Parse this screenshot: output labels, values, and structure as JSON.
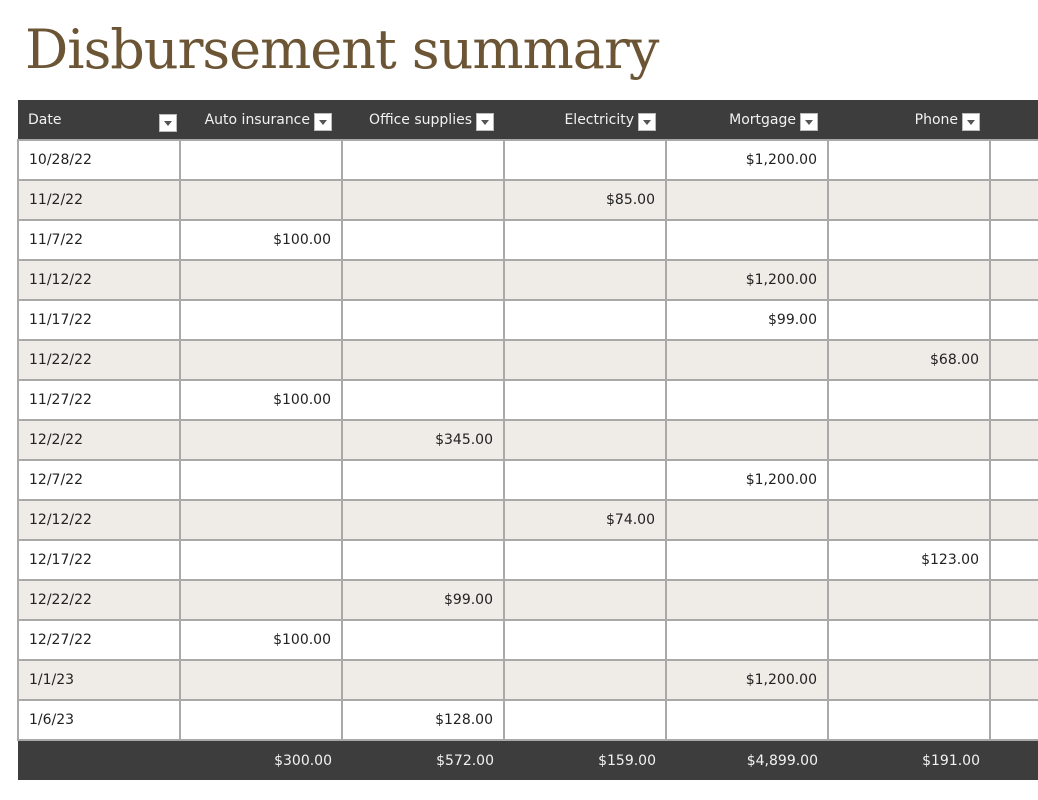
{
  "title": "Disbursement summary",
  "colors": {
    "header_bg": "#3d3d3d",
    "alt_row": "#efece7",
    "title": "#6b5535",
    "grid": "#a9a9a9"
  },
  "table": {
    "columns": [
      {
        "label": "Date",
        "filter_icon": "dropdown-arrow"
      },
      {
        "label": "Auto insurance",
        "filter_icon": "dropdown-arrow"
      },
      {
        "label": "Office supplies",
        "filter_icon": "dropdown-arrow"
      },
      {
        "label": "Electricity",
        "filter_icon": "dropdown-arrow"
      },
      {
        "label": "Mortgage",
        "filter_icon": "dropdown-arrow"
      },
      {
        "label": "Phone",
        "filter_icon": "dropdown-arrow"
      }
    ],
    "rows": [
      [
        "10/28/22",
        "",
        "",
        "",
        "$1,200.00",
        ""
      ],
      [
        "11/2/22",
        "",
        "",
        "$85.00",
        "",
        ""
      ],
      [
        "11/7/22",
        "$100.00",
        "",
        "",
        "",
        ""
      ],
      [
        "11/12/22",
        "",
        "",
        "",
        "$1,200.00",
        ""
      ],
      [
        "11/17/22",
        "",
        "",
        "",
        "$99.00",
        ""
      ],
      [
        "11/22/22",
        "",
        "",
        "",
        "",
        "$68.00"
      ],
      [
        "11/27/22",
        "$100.00",
        "",
        "",
        "",
        ""
      ],
      [
        "12/2/22",
        "",
        "$345.00",
        "",
        "",
        ""
      ],
      [
        "12/7/22",
        "",
        "",
        "",
        "$1,200.00",
        ""
      ],
      [
        "12/12/22",
        "",
        "",
        "$74.00",
        "",
        ""
      ],
      [
        "12/17/22",
        "",
        "",
        "",
        "",
        "$123.00"
      ],
      [
        "12/22/22",
        "",
        "$99.00",
        "",
        "",
        ""
      ],
      [
        "12/27/22",
        "$100.00",
        "",
        "",
        "",
        ""
      ],
      [
        "1/1/23",
        "",
        "",
        "",
        "$1,200.00",
        ""
      ],
      [
        "1/6/23",
        "",
        "$128.00",
        "",
        "",
        ""
      ]
    ],
    "totals": [
      "",
      "$300.00",
      "$572.00",
      "$159.00",
      "$4,899.00",
      "$191.00"
    ]
  }
}
